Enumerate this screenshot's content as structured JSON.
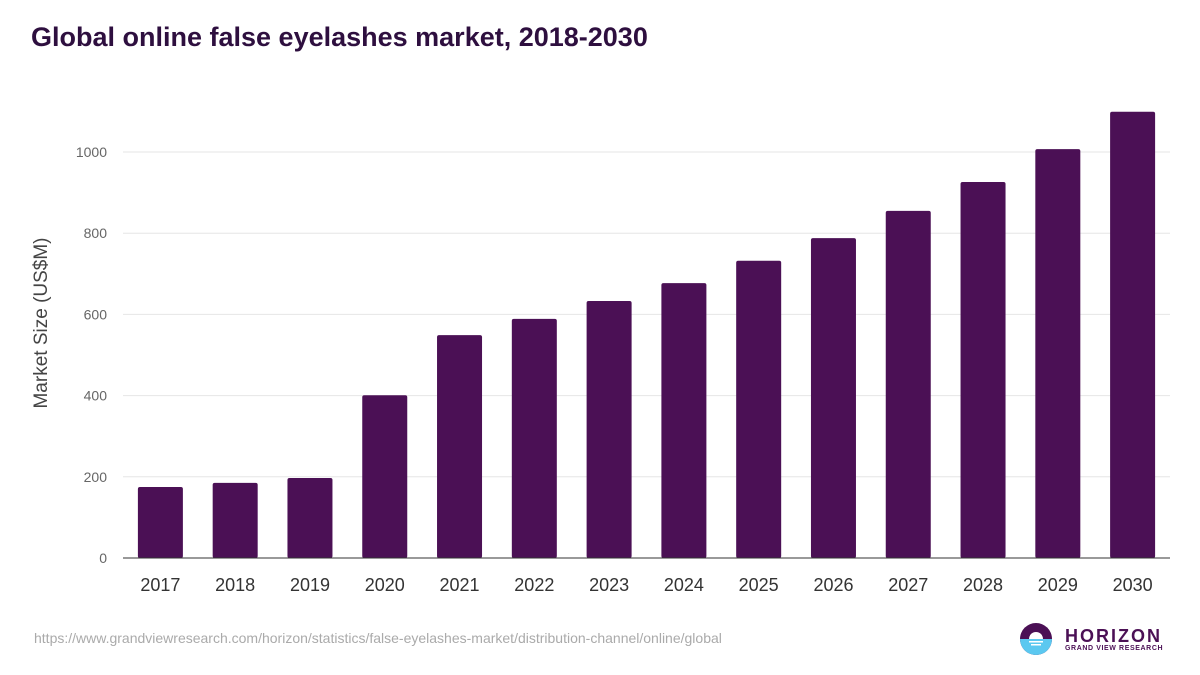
{
  "chart_data": {
    "type": "bar",
    "title": "Global online false eyelashes market, 2018-2030",
    "xlabel": "",
    "ylabel": "Market Size (US$M)",
    "ylim": [
      0,
      1100
    ],
    "yticks": [
      0,
      200,
      400,
      600,
      800,
      1000
    ],
    "grid": true,
    "categories": [
      "2017",
      "2018",
      "2019",
      "2020",
      "2021",
      "2022",
      "2023",
      "2024",
      "2025",
      "2026",
      "2027",
      "2028",
      "2029",
      "2030"
    ],
    "values": [
      175,
      185,
      197,
      401,
      549,
      589,
      633,
      677,
      732,
      788,
      855,
      926,
      1007,
      1099
    ],
    "color": "#4b1055"
  },
  "footer": {
    "url": "https://www.grandviewresearch.com/horizon/statistics/false-eyelashes-market/distribution-channel/online/global"
  },
  "logo": {
    "name": "HORIZON",
    "tagline": "GRAND VIEW RESEARCH"
  }
}
